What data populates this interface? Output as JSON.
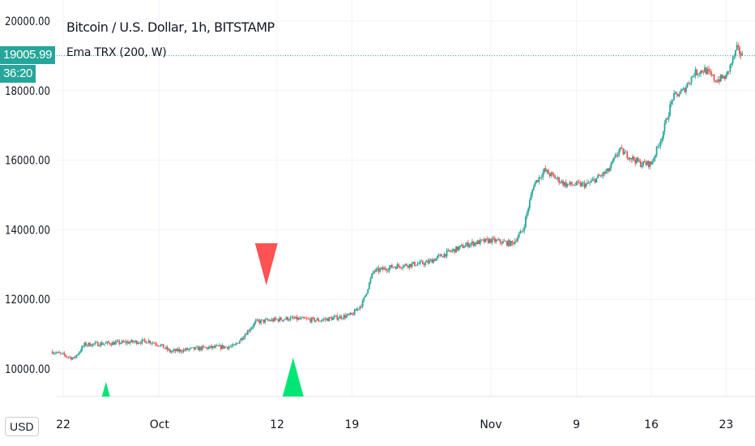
{
  "header": {
    "title": "Bitcoin / U.S. Dollar, 1h, BITSTAMP",
    "indicator": "Ema TRX (200, W)",
    "currency": "USD"
  },
  "badges": {
    "last_price": "19005.99",
    "countdown": "36:20"
  },
  "colors": {
    "up": "#26a69a",
    "down": "#ef5350",
    "buy": "#00e676",
    "sell": "#ff5252",
    "price_line": "#26a69a"
  },
  "chart_data": {
    "type": "candlestick",
    "title": "Bitcoin / U.S. Dollar, 1h, BITSTAMP",
    "ylim": [
      9200,
      20400
    ],
    "yticks": [
      "10000.00",
      "12000.00",
      "14000.00",
      "16000.00",
      "18000.00",
      "20000.00"
    ],
    "ytick_values": [
      10000,
      12000,
      14000,
      16000,
      18000,
      20000
    ],
    "xticks": [
      {
        "label": "22",
        "date": "2020-09-22"
      },
      {
        "label": "Oct",
        "date": "2020-10-01"
      },
      {
        "label": "12",
        "date": "2020-10-12"
      },
      {
        "label": "19",
        "date": "2020-10-19"
      },
      {
        "label": "Nov",
        "date": "2020-11-01"
      },
      {
        "label": "9",
        "date": "2020-11-09"
      },
      {
        "label": "16",
        "date": "2020-11-16"
      },
      {
        "label": "23",
        "date": "2020-11-23"
      }
    ],
    "xrange": [
      "2020-09-21",
      "2020-11-24"
    ],
    "approx_close_path": [
      [
        "2020-09-21",
        10500
      ],
      [
        "2020-09-23",
        10300
      ],
      [
        "2020-09-24",
        10700
      ],
      [
        "2020-09-27",
        10750
      ],
      [
        "2020-09-30",
        10800
      ],
      [
        "2020-10-01",
        10700
      ],
      [
        "2020-10-02",
        10500
      ],
      [
        "2020-10-05",
        10600
      ],
      [
        "2020-10-08",
        10650
      ],
      [
        "2020-10-09",
        11000
      ],
      [
        "2020-10-10",
        11350
      ],
      [
        "2020-10-13",
        11450
      ],
      [
        "2020-10-16",
        11400
      ],
      [
        "2020-10-19",
        11550
      ],
      [
        "2020-10-20",
        11900
      ],
      [
        "2020-10-21",
        12800
      ],
      [
        "2020-10-23",
        12950
      ],
      [
        "2020-10-26",
        13050
      ],
      [
        "2020-10-28",
        13350
      ],
      [
        "2020-10-30",
        13600
      ],
      [
        "2020-11-01",
        13700
      ],
      [
        "2020-11-03",
        13600
      ],
      [
        "2020-11-04",
        14000
      ],
      [
        "2020-11-05",
        15300
      ],
      [
        "2020-11-06",
        15700
      ],
      [
        "2020-11-08",
        15300
      ],
      [
        "2020-11-10",
        15300
      ],
      [
        "2020-11-12",
        15700
      ],
      [
        "2020-11-13",
        16300
      ],
      [
        "2020-11-15",
        15900
      ],
      [
        "2020-11-16",
        15900
      ],
      [
        "2020-11-17",
        16700
      ],
      [
        "2020-11-18",
        17800
      ],
      [
        "2020-11-19",
        18000
      ],
      [
        "2020-11-20",
        18500
      ],
      [
        "2020-11-21",
        18600
      ],
      [
        "2020-11-22",
        18300
      ],
      [
        "2020-11-23",
        18400
      ],
      [
        "2020-11-24",
        19200
      ],
      [
        "2020-11-24T12",
        19006
      ]
    ],
    "last_price": 19005.99,
    "signals": [
      {
        "type": "buy",
        "date": "2020-09-26"
      },
      {
        "type": "sell",
        "date": "2020-10-11",
        "price": 13100
      },
      {
        "type": "buy",
        "date": "2020-10-13T12"
      }
    ]
  }
}
